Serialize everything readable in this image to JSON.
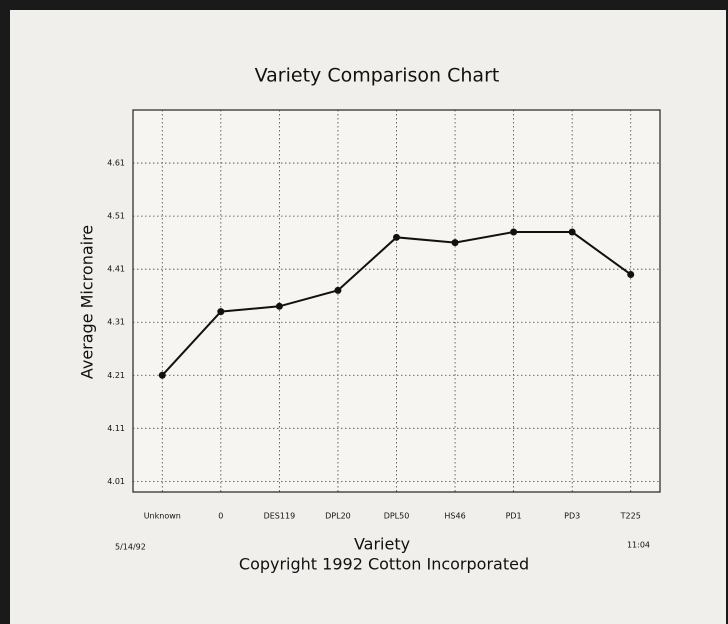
{
  "chart_data": {
    "type": "line",
    "title": "Variety Comparison Chart",
    "xlabel": "Variety",
    "ylabel": "Average Micronaire",
    "date": "5/14/92",
    "time": "11:04",
    "footer": "Copyright 1992  Cotton Incorporated",
    "categories": [
      "Unknown",
      "0",
      "DES119",
      "DPL20",
      "DPL50",
      "HS46",
      "PD1",
      "PD3",
      "T225"
    ],
    "series": [
      {
        "name": "Average Micronaire",
        "color": "#111111",
        "values": [
          4.21,
          4.33,
          4.34,
          4.37,
          4.47,
          4.46,
          4.48,
          4.48,
          4.4
        ]
      }
    ],
    "ylim": [
      3.99,
      4.71
    ],
    "yticks": [
      4.01,
      4.11,
      4.21,
      4.31,
      4.41,
      4.51,
      4.61
    ],
    "grid": true
  }
}
